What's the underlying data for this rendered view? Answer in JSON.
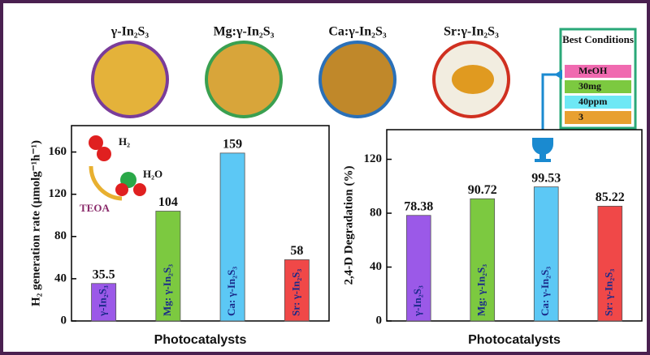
{
  "samples": [
    "γ-In₂S₃",
    "Mg:γ-In₂S₃",
    "Ca:γ-In₂S₃",
    "Sr:γ-In₂S₃"
  ],
  "best_conditions": {
    "title": "Best Conditions",
    "items": [
      "MeOH",
      "30mg",
      "40ppm",
      "3"
    ],
    "colors": [
      "#f06ab0",
      "#7cc940",
      "#6ee8f5",
      "#e8a030"
    ]
  },
  "inset": {
    "h2": "H₂",
    "h2o": "H₂O",
    "teoa": "TEOA"
  },
  "chart_data": [
    {
      "type": "bar",
      "ylabel": "H₂ generation rate (μmolg⁻¹h⁻¹)",
      "xlabel": "Photocatalysts",
      "categories": [
        "γ-In₂S₃",
        "Mg: γ-In₂S₃",
        "Ca: γ-In₂S₃",
        "Sr: γ-In₂S₃"
      ],
      "values": [
        35.5,
        104,
        159,
        58
      ],
      "colors": [
        "#9b59e8",
        "#7cc940",
        "#5cc8f5",
        "#f04848"
      ],
      "ylim": [
        0,
        185
      ],
      "yticks": [
        0,
        40,
        80,
        120,
        160
      ]
    },
    {
      "type": "bar",
      "ylabel": "2,4-D Degradation (%)",
      "xlabel": "Photocatalysts",
      "categories": [
        "γ-In₂S₃",
        "Mg: γ-In₂S₃",
        "Ca: γ-In₂S₃",
        "Sr: γ-In₂S₃"
      ],
      "values": [
        78.38,
        90.72,
        99.53,
        85.22
      ],
      "colors": [
        "#9b59e8",
        "#7cc940",
        "#5cc8f5",
        "#f04848"
      ],
      "ylim": [
        0,
        142
      ],
      "yticks": [
        0,
        40,
        80,
        120
      ]
    }
  ]
}
